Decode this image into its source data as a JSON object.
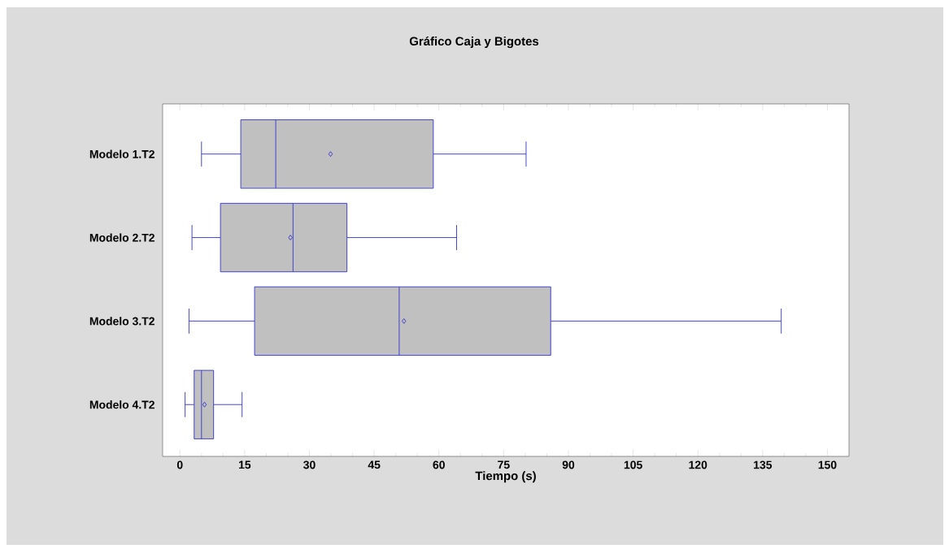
{
  "chart_data": {
    "type": "box",
    "title": "Gráfico Caja y Bigotes",
    "xlabel": "Tiempo (s)",
    "orientation": "horizontal",
    "categories": [
      "Modelo 1.T2",
      "Modelo 2.T2",
      "Modelo 3.T2",
      "Modelo 4.T2"
    ],
    "color": "#c0c0c0",
    "boxes": [
      {
        "low": 5.0,
        "q1": 14.1,
        "median": 22.2,
        "q3": 58.7,
        "high": 80.2,
        "mean": 34.9
      },
      {
        "low": 2.8,
        "q1": 9.4,
        "median": 26.2,
        "q3": 38.7,
        "high": 64.1,
        "mean": 25.6
      },
      {
        "low": 2.1,
        "q1": 17.3,
        "median": 50.8,
        "q3": 85.9,
        "high": 139.3,
        "mean": 51.9
      },
      {
        "low": 1.2,
        "q1": 3.3,
        "median": 5.0,
        "q3": 7.8,
        "high": 14.4,
        "mean": 5.7
      }
    ],
    "xlim": [
      -4,
      155
    ],
    "xticks": [
      0,
      15,
      30,
      45,
      60,
      75,
      90,
      105,
      120,
      135,
      150
    ],
    "grid": false
  }
}
